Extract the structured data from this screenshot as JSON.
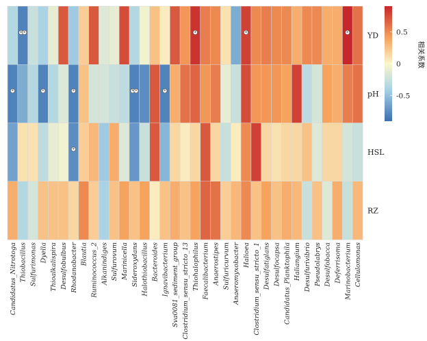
{
  "chart_data": {
    "type": "heatmap",
    "colorbar_title": "相关系数",
    "colorbar_ticks": [
      {
        "value": 0.5,
        "label": "0.5"
      },
      {
        "value": 0.0,
        "label": "0"
      },
      {
        "value": -0.5,
        "label": "-0.5"
      }
    ],
    "value_range": [
      -0.9,
      0.9
    ],
    "rows": [
      "YD",
      "pH",
      "HSL",
      "RZ"
    ],
    "columns": [
      "Candidatus_Nitrotoga",
      "Thiobacillus",
      "Sulfurimonas",
      "Dyella",
      "Thioalkalispira",
      "Desulfobulbus",
      "Rhodanobacter",
      "Blautia",
      "Ruminococcus_2",
      "Alkanindiges",
      "Sulfurovum",
      "Marinicella",
      "Sideroxydans",
      "Halothiobacillus",
      "Bacteroides",
      "Ignavibacterium",
      "Sva0081_sediment_group",
      "Clostridium_sensu_stricto_13",
      "Thiohalophilus",
      "Faecalibacterium",
      "Anaerostipes",
      "Sulfuricurvum",
      "Anaeromyxobacter",
      "Halioea",
      "Clostridium_sensu_stricto_1",
      "Desulfatiglans",
      "Desulfocapsa",
      "Candidatus_Planktophila",
      "Haliangium",
      "Desulfurivibrio",
      "Pseudolabrys",
      "Desulfobacca",
      "Deferrisoma",
      "Marinobacterium",
      "Cellulomonas"
    ],
    "values": [
      [
        -0.35,
        -0.8,
        -0.25,
        -0.4,
        -0.1,
        0.7,
        -0.45,
        0.2,
        0.7,
        -0.15,
        -0.1,
        0.75,
        -0.35,
        -0.05,
        0.25,
        0.05,
        0.7,
        0.45,
        0.85,
        0.55,
        0.5,
        0.1,
        -0.6,
        0.8,
        0.5,
        0.55,
        0.5,
        0.5,
        0.35,
        0.5,
        0.5,
        0.35,
        0.35,
        0.9,
        0.6
      ],
      [
        -0.8,
        -0.6,
        -0.35,
        -0.8,
        -0.35,
        -0.15,
        -0.8,
        0.25,
        -0.2,
        -0.2,
        -0.25,
        -0.3,
        -0.8,
        -0.75,
        0.7,
        -0.8,
        0.35,
        0.6,
        0.65,
        0.45,
        0.55,
        -0.1,
        -0.25,
        0.75,
        0.45,
        0.45,
        0.45,
        0.4,
        0.8,
        -0.3,
        -0.2,
        0.4,
        0.35,
        0.55,
        0.6
      ],
      [
        -0.65,
        0.1,
        0.1,
        -0.3,
        -0.1,
        -0.05,
        -0.75,
        0.2,
        0.3,
        -0.45,
        0.35,
        -0.15,
        -0.7,
        -0.25,
        0.7,
        -0.55,
        0.15,
        0.05,
        0.15,
        0.7,
        0.15,
        -0.25,
        0.05,
        0.5,
        0.8,
        0.15,
        0.1,
        0.15,
        0.15,
        0.25,
        -0.15,
        0.15,
        0.15,
        -0.2,
        -0.25
      ],
      [
        0.35,
        -0.35,
        -0.2,
        0.25,
        0.25,
        0.25,
        0.15,
        0.5,
        0.2,
        -0.4,
        0.25,
        0.4,
        0.25,
        0.4,
        0.05,
        0.25,
        0.35,
        0.25,
        0.4,
        0.65,
        0.6,
        0.2,
        0.3,
        0.5,
        0.25,
        0.4,
        0.25,
        0.35,
        0.3,
        -0.25,
        0.25,
        -0.15,
        0.35,
        -0.25,
        0.3
      ]
    ],
    "significance": [
      {
        "row": "YD",
        "column": "Thiobacillus",
        "marker": "**"
      },
      {
        "row": "YD",
        "column": "Thiohalophilus",
        "marker": "*"
      },
      {
        "row": "YD",
        "column": "Halioea",
        "marker": "*"
      },
      {
        "row": "YD",
        "column": "Marinobacterium",
        "marker": "*"
      },
      {
        "row": "pH",
        "column": "Candidatus_Nitrotoga",
        "marker": "*"
      },
      {
        "row": "pH",
        "column": "Dyella",
        "marker": "*"
      },
      {
        "row": "pH",
        "column": "Rhodanobacter",
        "marker": "*"
      },
      {
        "row": "pH",
        "column": "Sideroxydans",
        "marker": "**"
      },
      {
        "row": "pH",
        "column": "Ignavibacterium",
        "marker": "*"
      },
      {
        "row": "HSL",
        "column": "Rhodanobacter",
        "marker": "*"
      }
    ],
    "colors": {
      "low": "#3a6fb0",
      "mid_low": "#a9d3e6",
      "mid": "#fbf6cc",
      "mid_high": "#f6a25c",
      "high": "#c6272a",
      "grid": "#d8d8d8"
    }
  }
}
